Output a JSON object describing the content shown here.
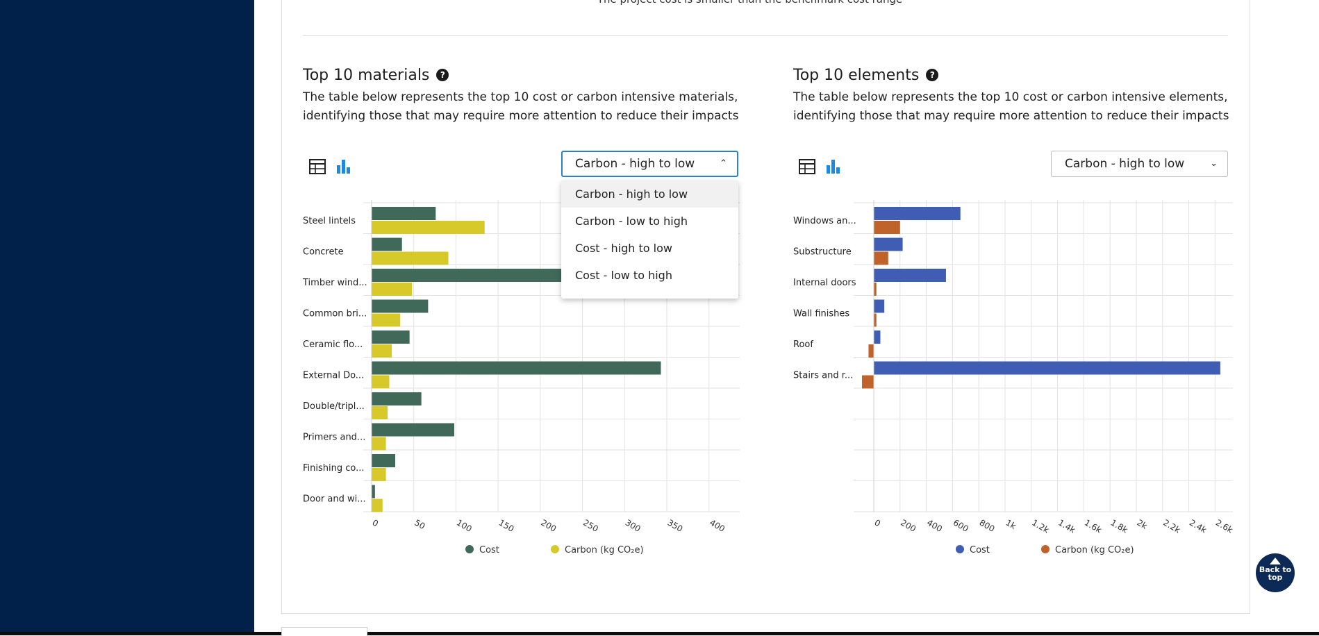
{
  "page": {
    "top_note": "The project cost is smaller than the benchmark cost range",
    "back_to_top": "Back to top"
  },
  "materials": {
    "title": "Top 10 materials",
    "help_icon": "?",
    "description": "The table below represents the top 10 cost or carbon intensive materials, identifying those that may require more attention to reduce their impacts",
    "sort_selected": "Carbon - high to low",
    "sort_options": [
      "Carbon - high to low",
      "Carbon - low to high",
      "Cost - high to low",
      "Cost - low to high"
    ]
  },
  "elements": {
    "title": "Top 10 elements",
    "help_icon": "?",
    "description": "The table below represents the top 10 cost or carbon intensive elements, identifying those that may require more attention to reduce their impacts",
    "sort_selected": "Carbon - high to low"
  },
  "icons": {
    "table_view": "table-icon",
    "chart_view": "bar-chart-icon",
    "help": "question-icon",
    "chevron_up": "chevron-up-icon",
    "chevron_down": "chevron-down-icon",
    "back_to_top": "arrow-up-icon"
  },
  "colors": {
    "sidebar": "#02214a",
    "materials_cost": "#40695a",
    "materials_carbon": "#d8c92a",
    "elements_cost": "#3f5eb3",
    "elements_carbon": "#c0632a",
    "chart_icon": "#1e88e5"
  },
  "chart_data": [
    {
      "type": "bar",
      "orientation": "horizontal",
      "categories": [
        "Steel lintels",
        "Concrete",
        "Timber wind...",
        "Common bri...",
        "Ceramic flo...",
        "External Do...",
        "Double/tripl...",
        "Primers and...",
        "Finishing co...",
        "Door and wi..."
      ],
      "series": [
        {
          "name": "Cost",
          "values": [
            76,
            36,
            290,
            67,
            45,
            343,
            59,
            98,
            28,
            4
          ]
        },
        {
          "name": "Carbon (kg CO₂e)",
          "values": [
            134,
            91,
            48,
            34,
            24,
            21,
            19,
            17,
            17,
            13
          ]
        }
      ],
      "xticks": [
        "0",
        "50",
        "100",
        "150",
        "200",
        "250",
        "300",
        "350",
        "400"
      ],
      "xlim": [
        0,
        420
      ],
      "grid": true,
      "legend": "bottom"
    },
    {
      "type": "bar",
      "orientation": "horizontal",
      "categories": [
        "Windows an...",
        "Substructure",
        "Internal doors",
        "Wall finishes",
        "Roof",
        "Stairs and r..."
      ],
      "series": [
        {
          "name": "Cost",
          "values": [
            660,
            220,
            550,
            80,
            50,
            2640
          ]
        },
        {
          "name": "Carbon (kg CO₂e)",
          "values": [
            200,
            110,
            20,
            20,
            -40,
            -90
          ]
        }
      ],
      "xticks": [
        "0",
        "200",
        "400",
        "600",
        "800",
        "1k",
        "1.2k",
        "1.4k",
        "1.6k",
        "1.8k",
        "2k",
        "2.2k",
        "2.4k",
        "2.6k"
      ],
      "xlim": [
        -90,
        2630
      ],
      "rows": 10,
      "grid": true,
      "legend": "bottom"
    }
  ]
}
